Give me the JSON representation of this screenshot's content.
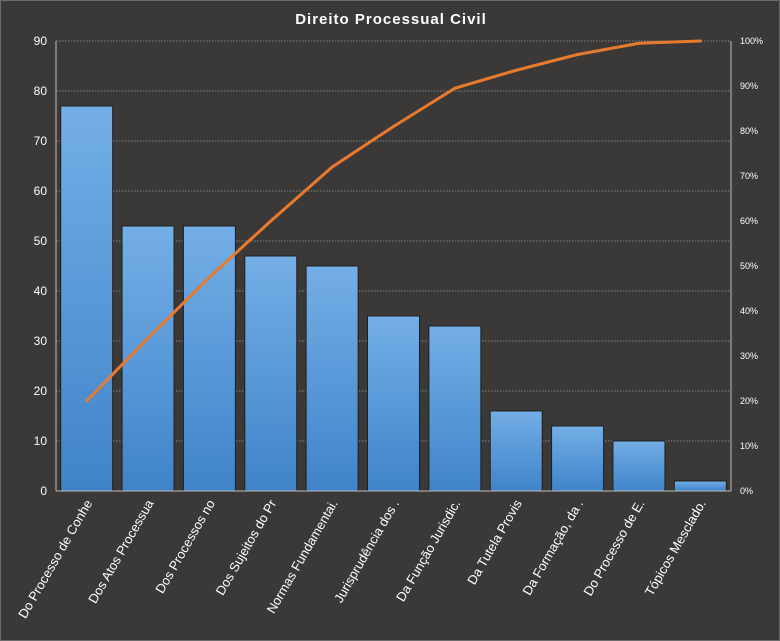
{
  "chart_data": {
    "type": "bar",
    "title": "Direito  Processual  Civil",
    "categories": [
      "Do Processo de Conhe",
      "Dos Atos Processua",
      "Dos Processos no",
      "Dos Sujeitos do Pr",
      "Normas Fundamentai.",
      "Jurisprudência dos .",
      "Da Função Jurisdic.",
      "Da Tutela Provis",
      "Da Formação, da .",
      "Do Processo de E.",
      "Tópicos Mesclado."
    ],
    "values": [
      77,
      53,
      53,
      47,
      45,
      35,
      33,
      16,
      13,
      10,
      2
    ],
    "cumulative_percent": [
      20,
      34,
      47.5,
      60,
      72,
      81,
      89.5,
      93.5,
      97,
      99.5,
      100
    ],
    "ylim": [
      0,
      90
    ],
    "y_ticks": [
      "0",
      "10",
      "20",
      "30",
      "40",
      "50",
      "60",
      "70",
      "80",
      "90"
    ],
    "y2lim": [
      0,
      100
    ],
    "y2_ticks": [
      "0%",
      "10%",
      "20%",
      "30%",
      "40%",
      "50%",
      "60%",
      "70%",
      "80%",
      "90%",
      "100%"
    ],
    "grid": true,
    "colors": {
      "bar": "#4a90d6",
      "line": "#e87a2e",
      "background": "#3b3938",
      "grid": "#d0d0d0"
    }
  }
}
